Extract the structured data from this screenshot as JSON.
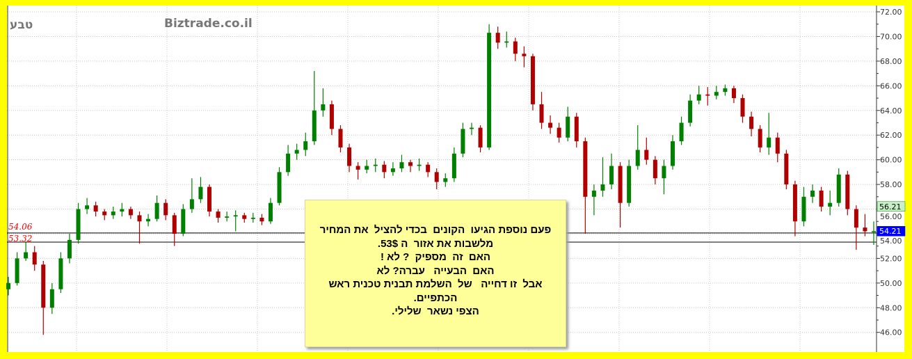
{
  "header": {
    "ticker": "טבע",
    "brand": "Biztrade.co.il"
  },
  "note": {
    "lines": [
      "פעם נוספת הגיעו  הקונים  בכדי להציל  את המחיר",
      "מלשבות את אזור  ה 53$.",
      "האם  זה  מספיק  ? לא !",
      "האם  הבעייה   עברה? לא",
      "אבל  זו דחייה   של  השלמת תבנית טכנית ראש",
      "הכתפיים.",
      "הצפי נשאר  שלילי."
    ]
  },
  "chart_data": {
    "type": "candlestick",
    "ylim": [
      45,
      72.5
    ],
    "yticks": [
      "46.00",
      "48.00",
      "50.00",
      "52.00",
      "54.00",
      "56.00",
      "58.00",
      "60.00",
      "62.00",
      "64.00",
      "66.00",
      "68.00",
      "70.00",
      "72.00"
    ],
    "grid": true,
    "colors": {
      "up": "#008000",
      "down": "#b00000",
      "last_price_bg": "#0000ff",
      "level_bg": "#c8f0c8",
      "level_label": "#ff0000"
    },
    "last_price": "54.21",
    "marked_level": "56.21",
    "horizontal_lines": [
      {
        "value": 54.06,
        "label": "54.06"
      },
      {
        "value": 53.32,
        "label": "53.32"
      }
    ],
    "ohlc": [
      [
        49.5,
        50.5,
        49,
        50
      ],
      [
        50,
        52.5,
        49.8,
        52
      ],
      [
        52,
        53.3,
        51.8,
        52.5
      ],
      [
        52.5,
        53,
        51,
        51.5
      ],
      [
        51.5,
        51.8,
        45.8,
        48
      ],
      [
        48,
        50,
        47.5,
        49.5
      ],
      [
        49.5,
        52.5,
        49.2,
        52
      ],
      [
        52,
        54,
        51.6,
        53.5
      ],
      [
        53.5,
        56.5,
        53.2,
        56
      ],
      [
        56,
        56.9,
        55.6,
        56.3
      ],
      [
        56.3,
        56.6,
        55.4,
        55.8
      ],
      [
        55.8,
        56,
        55.1,
        55.5
      ],
      [
        55.5,
        56.2,
        55.2,
        55.8
      ],
      [
        55.8,
        56.5,
        55.4,
        56
      ],
      [
        56,
        56.2,
        55.2,
        55.5
      ],
      [
        55.5,
        55.8,
        53.2,
        55
      ],
      [
        55,
        55.6,
        54.6,
        55.2
      ],
      [
        55.2,
        57.1,
        55,
        56.5
      ],
      [
        56.5,
        56.8,
        55.1,
        55.5
      ],
      [
        55.5,
        55.7,
        53,
        54
      ],
      [
        54,
        56.4,
        53.8,
        56
      ],
      [
        56,
        58.5,
        55.7,
        56.8
      ],
      [
        56.8,
        58.6,
        56.5,
        57.8
      ],
      [
        57.8,
        58,
        55.4,
        55.8
      ],
      [
        55.8,
        56,
        54.9,
        55.3
      ],
      [
        55.3,
        55.8,
        55,
        55.4
      ],
      [
        55.4,
        55.9,
        54.2,
        55.5
      ],
      [
        55.5,
        55.7,
        54.9,
        55.2
      ],
      [
        55.2,
        55.7,
        54.9,
        55.3
      ],
      [
        55.3,
        55.6,
        54.7,
        55
      ],
      [
        55,
        56.9,
        54.8,
        56.5
      ],
      [
        56.5,
        59.4,
        56.3,
        59
      ],
      [
        59,
        61.2,
        58.7,
        60.5
      ],
      [
        60.5,
        61.3,
        60,
        60.8
      ],
      [
        60.8,
        62.2,
        60.3,
        61.5
      ],
      [
        61.5,
        67.2,
        61.2,
        64
      ],
      [
        64,
        65.8,
        63.5,
        64.5
      ],
      [
        64.5,
        64.8,
        62,
        62.5
      ],
      [
        62.5,
        62.8,
        60.6,
        61
      ],
      [
        61,
        61.3,
        59,
        59.5
      ],
      [
        59.5,
        59.8,
        58.4,
        59.2
      ],
      [
        59.2,
        60,
        58.9,
        59.5
      ],
      [
        59.5,
        60.1,
        59,
        59.6
      ],
      [
        59.6,
        59.9,
        58.5,
        59
      ],
      [
        59,
        59.8,
        58.7,
        59.3
      ],
      [
        59.3,
        60.4,
        59,
        59.8
      ],
      [
        59.8,
        60,
        59,
        59.5
      ],
      [
        59.5,
        60.1,
        59.1,
        59.6
      ],
      [
        59.6,
        59.8,
        58.6,
        59
      ],
      [
        59,
        59.3,
        57.6,
        58.2
      ],
      [
        58.2,
        58.9,
        57.8,
        58.5
      ],
      [
        58.5,
        61,
        58.2,
        60.5
      ],
      [
        60.5,
        63,
        60.2,
        62.5
      ],
      [
        62.5,
        63,
        62,
        62.6
      ],
      [
        62.6,
        62.8,
        60.6,
        61
      ],
      [
        61,
        71,
        60.8,
        70.3
      ],
      [
        70.3,
        70.8,
        69,
        69.5
      ],
      [
        69.5,
        70.4,
        69.1,
        69.6
      ],
      [
        69.6,
        69.9,
        68,
        68.6
      ],
      [
        68.6,
        69.2,
        67.5,
        68.4
      ],
      [
        68.4,
        68.6,
        64,
        64.5
      ],
      [
        64.5,
        65.5,
        62.5,
        63
      ],
      [
        63,
        63.6,
        62.1,
        62.6
      ],
      [
        62.6,
        63,
        61.4,
        61.8
      ],
      [
        61.8,
        64.3,
        61.5,
        63.5
      ],
      [
        63.5,
        63.8,
        61,
        61.5
      ],
      [
        61.5,
        61.8,
        54,
        57
      ],
      [
        57,
        58,
        55.5,
        57.5
      ],
      [
        57.5,
        60.2,
        57,
        58
      ],
      [
        58,
        60.5,
        57.6,
        59.5
      ],
      [
        59.5,
        59.8,
        54.5,
        56.5
      ],
      [
        56.5,
        60,
        56.2,
        59.5
      ],
      [
        59.5,
        62.8,
        59.2,
        60.8
      ],
      [
        60.8,
        61.8,
        59.6,
        60
      ],
      [
        60,
        60.3,
        58,
        58.5
      ],
      [
        58.5,
        60,
        57.2,
        59.5
      ],
      [
        59.5,
        62,
        59.2,
        61.5
      ],
      [
        61.5,
        63.5,
        61.2,
        63
      ],
      [
        63,
        65.3,
        62.7,
        64.8
      ],
      [
        64.8,
        66,
        64.5,
        65.3
      ],
      [
        65.3,
        65.9,
        64.4,
        65.2
      ],
      [
        65.2,
        66,
        64.9,
        65.5
      ],
      [
        65.5,
        66.1,
        65.2,
        65.8
      ],
      [
        65.8,
        66,
        64.6,
        65
      ],
      [
        65,
        65.3,
        63,
        63.5
      ],
      [
        63.5,
        63.9,
        61.9,
        62.5
      ],
      [
        62.5,
        62.8,
        60.6,
        61
      ],
      [
        61,
        63.8,
        60.4,
        61.8
      ],
      [
        61.8,
        62.2,
        59.8,
        60.5
      ],
      [
        60.5,
        60.8,
        57.6,
        58
      ],
      [
        58,
        58.3,
        53.8,
        55
      ],
      [
        55,
        57.8,
        54.6,
        57
      ],
      [
        57,
        58,
        56.5,
        57.5
      ],
      [
        57.5,
        57.8,
        55.8,
        56.2
      ],
      [
        56.2,
        57.5,
        55.5,
        56.5
      ],
      [
        56.5,
        59.3,
        56.2,
        58.8
      ],
      [
        58.8,
        59.1,
        55.5,
        56
      ],
      [
        56,
        56.3,
        52.7,
        54.5
      ],
      [
        54.5,
        55.6,
        53.8,
        54.2
      ],
      [
        54.2,
        55,
        53.1,
        54.21
      ]
    ]
  }
}
